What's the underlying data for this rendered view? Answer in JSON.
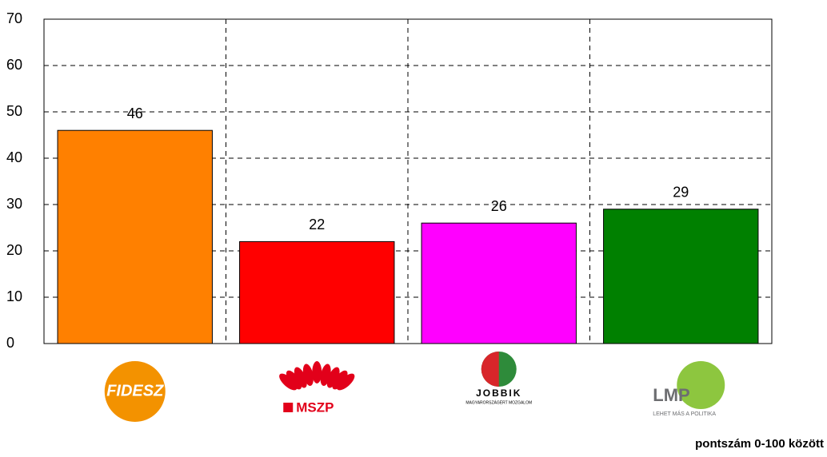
{
  "chart_data": {
    "type": "bar",
    "categories": [
      "FIDESZ",
      "MSZP",
      "JOBBIK",
      "LMP"
    ],
    "category_sublabels": [
      null,
      null,
      "MAGYARORSZÁGÉRT MOZGALOM",
      "LEHET MÁS A POLITIKA"
    ],
    "values": [
      46,
      22,
      26,
      29
    ],
    "colors": [
      "#ff8000",
      "#ff0000",
      "#ff00ff",
      "#008000"
    ],
    "ylim": [
      0,
      70
    ],
    "yticks": [
      0,
      10,
      20,
      30,
      40,
      50,
      60,
      70
    ],
    "grid": true,
    "note": "pontszám 0-100 között"
  }
}
